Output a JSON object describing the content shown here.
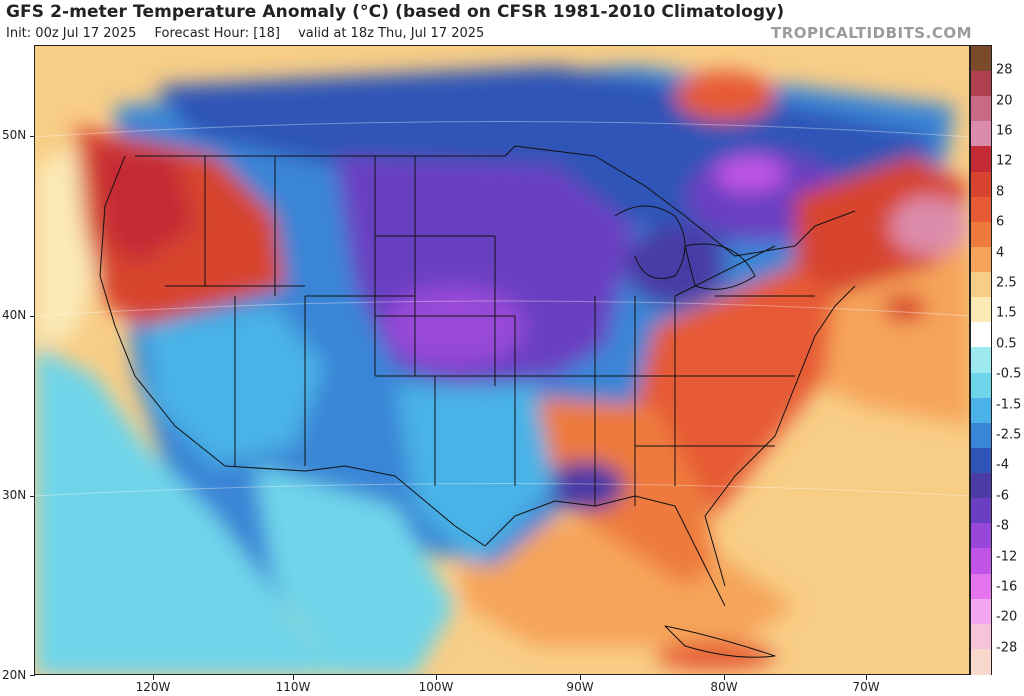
{
  "header": {
    "title": "GFS 2-meter Temperature Anomaly (°C) (based on CFSR 1981-2010 Climatology)",
    "init": "Init: 00z Jul 17 2025",
    "forecast_hour": "Forecast Hour: [18]",
    "valid": "valid at 18z Thu, Jul 17 2025",
    "brand": "TROPICALTIDBITS.COM"
  },
  "axes": {
    "lat_labels": [
      "50N",
      "40N",
      "30N",
      "20N"
    ],
    "lon_labels": [
      "120W",
      "110W",
      "100W",
      "90W",
      "80W",
      "70W"
    ]
  },
  "colorbar": {
    "labels": [
      "28",
      "20",
      "16",
      "12",
      "8",
      "6",
      "4",
      "2.5",
      "1.5",
      "0.5",
      "-0.5",
      "-1.5",
      "-2.5",
      "-4",
      "-6",
      "-8",
      "-12",
      "-16",
      "-20",
      "-28"
    ],
    "colors": [
      "#7a4a2a",
      "#b0404f",
      "#c66a86",
      "#dc8cab",
      "#c42a36",
      "#d7442f",
      "#e65a35",
      "#ee7a3d",
      "#f6a45a",
      "#f8cd86",
      "#fbe9b6",
      "#ffffff",
      "#9de9ef",
      "#6fd5ea",
      "#4ab2e6",
      "#3a85d6",
      "#2e55b7",
      "#4a3ba5",
      "#6a3fc2",
      "#9848d8",
      "#c054e6",
      "#e474ee",
      "#f2a6f0",
      "#f6c4d8",
      "#f8d8cc"
    ]
  },
  "map_colors": {
    "ocean_base": "#f8cd86",
    "gulf_warm": "#ee7a3d",
    "land_cool": "#3a85d6",
    "plains_cold": "#6a3fc2",
    "west_warm": "#d7442f",
    "east_warm": "#e65a35",
    "pacific_cool": "#6fd5ea"
  }
}
